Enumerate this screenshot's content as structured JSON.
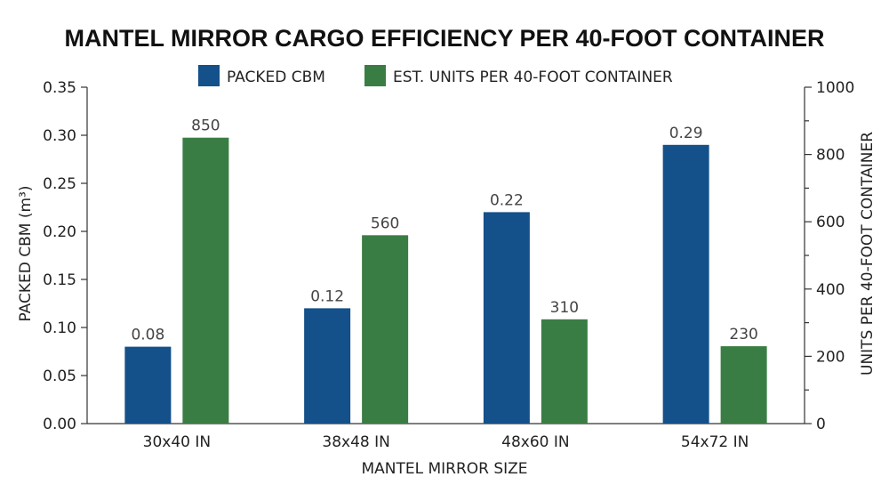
{
  "chart_data": {
    "type": "bar",
    "title": "MANTEL MIRROR CARGO EFFICIENCY PER 40-FOOT CONTAINER",
    "xlabel": "MANTEL MIRROR SIZE",
    "ylabel": "PACKED CBM (m³)",
    "y2label": "UNITS PER 40-FOOT CONTAINER",
    "categories": [
      "30x40 IN",
      "38x48 IN",
      "48x60 IN",
      "54x72 IN"
    ],
    "series": [
      {
        "name": "PACKED CBM",
        "axis": "left",
        "color": "#14508a",
        "values": [
          0.08,
          0.12,
          0.22,
          0.29
        ],
        "labels": [
          "0.08",
          "0.12",
          "0.22",
          "0.29"
        ]
      },
      {
        "name": "EST. UNITS PER 40-FOOT CONTAINER",
        "axis": "right",
        "color": "#3a7d44",
        "values": [
          850,
          560,
          310,
          230
        ],
        "labels": [
          "850",
          "560",
          "310",
          "230"
        ]
      }
    ],
    "ylim": [
      0,
      0.35
    ],
    "y2lim": [
      0,
      1000
    ],
    "yticks": [
      "0.00",
      "0.05",
      "0.10",
      "0.15",
      "0.20",
      "0.25",
      "0.30",
      "0.35"
    ],
    "y2ticks": [
      "0",
      "200",
      "400",
      "600",
      "800",
      "1000"
    ],
    "legend_position": "top-center",
    "grid": false
  }
}
